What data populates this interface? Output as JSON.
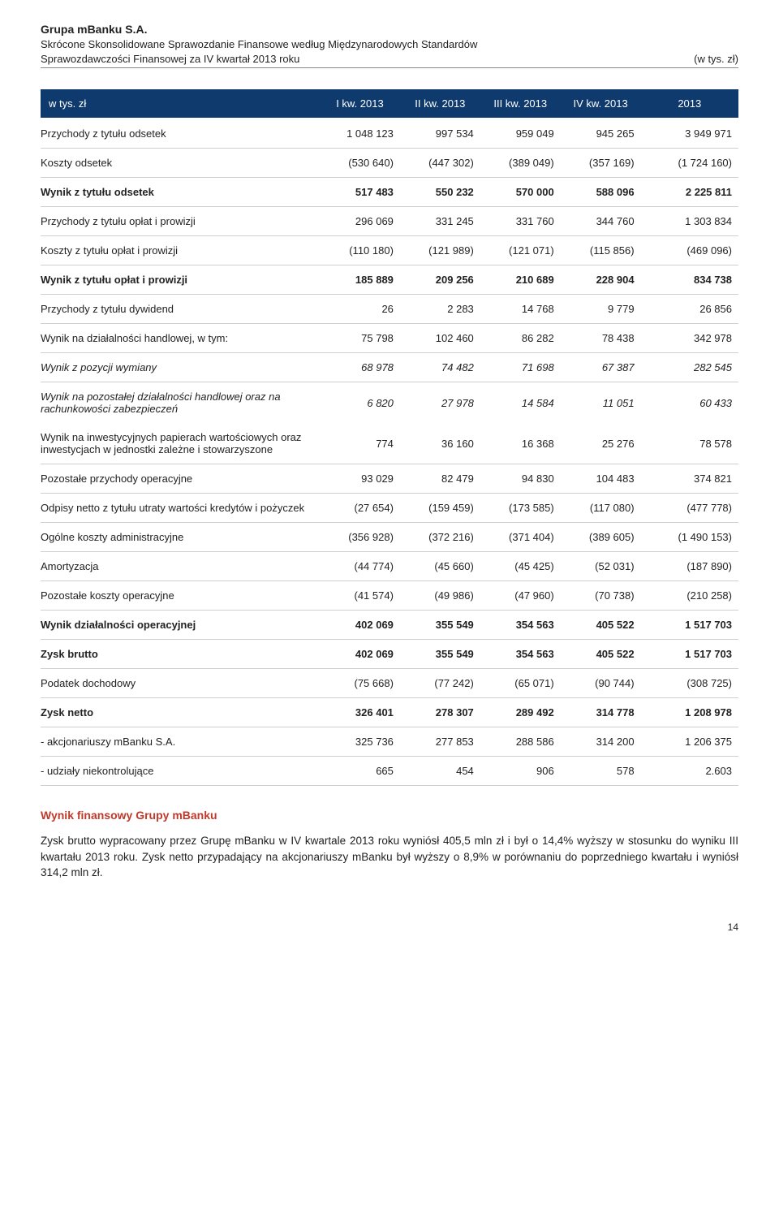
{
  "header": {
    "company": "Grupa mBanku S.A.",
    "subtitle_line1": "Skrócone Skonsolidowane Sprawozdanie Finansowe według Międzynarodowych Standardów",
    "subtitle_line2": "Sprawozdawczości Finansowej za IV kwartał 2013 roku",
    "unit": "(w tys. zł)"
  },
  "table": {
    "columns": [
      "w tys. zł",
      "I kw. 2013",
      "II kw. 2013",
      "III kw. 2013",
      "IV kw. 2013",
      "2013"
    ],
    "rows": [
      {
        "label": "Przychody z tytułu odsetek",
        "v": [
          "1 048 123",
          "997 534",
          "959 049",
          "945 265",
          "3 949 971"
        ]
      },
      {
        "label": "Koszty odsetek",
        "v": [
          "(530 640)",
          "(447 302)",
          "(389 049)",
          "(357 169)",
          "(1 724 160)"
        ]
      },
      {
        "label": "Wynik z tytułu odsetek",
        "v": [
          "517 483",
          "550 232",
          "570 000",
          "588 096",
          "2 225 811"
        ],
        "bold": true
      },
      {
        "label": "Przychody z tytułu opłat i prowizji",
        "v": [
          "296 069",
          "331 245",
          "331 760",
          "344 760",
          "1 303 834"
        ]
      },
      {
        "label": "Koszty z tytułu opłat i prowizji",
        "v": [
          "(110 180)",
          "(121 989)",
          "(121 071)",
          "(115 856)",
          "(469 096)"
        ]
      },
      {
        "label": "Wynik z tytułu opłat i prowizji",
        "v": [
          "185 889",
          "209 256",
          "210 689",
          "228 904",
          "834 738"
        ],
        "bold": true
      },
      {
        "label": "Przychody z tytułu dywidend",
        "v": [
          "26",
          "2 283",
          "14 768",
          "9 779",
          "26 856"
        ]
      },
      {
        "label": "Wynik na działalności handlowej, w tym:",
        "v": [
          "75 798",
          "102 460",
          "86 282",
          "78 438",
          "342 978"
        ]
      },
      {
        "label": "Wynik z pozycji wymiany",
        "v": [
          "68 978",
          "74 482",
          "71 698",
          "67 387",
          "282 545"
        ],
        "indent": 1,
        "italic": true
      },
      {
        "label": "Wynik na pozostałej działalności handlowej oraz na rachunkowości zabezpieczeń",
        "v": [
          "6 820",
          "27 978",
          "14 584",
          "11 051",
          "60 433"
        ],
        "indent": 1,
        "italic": true,
        "nobottom": true
      },
      {
        "label": "Wynik na inwestycyjnych papierach wartościowych oraz inwestycjach w jednostki zależne i stowarzyszone",
        "v": [
          "774",
          "36 160",
          "16 368",
          "25 276",
          "78 578"
        ]
      },
      {
        "label": "Pozostałe przychody operacyjne",
        "v": [
          "93 029",
          "82 479",
          "94 830",
          "104 483",
          "374 821"
        ]
      },
      {
        "label": "Odpisy netto z tytułu utraty wartości kredytów i pożyczek",
        "v": [
          "(27 654)",
          "(159 459)",
          "(173 585)",
          "(117 080)",
          "(477 778)"
        ]
      },
      {
        "label": "Ogólne koszty administracyjne",
        "v": [
          "(356 928)",
          "(372 216)",
          "(371 404)",
          "(389 605)",
          "(1 490 153)"
        ]
      },
      {
        "label": "Amortyzacja",
        "v": [
          "(44 774)",
          "(45 660)",
          "(45 425)",
          "(52 031)",
          "(187 890)"
        ]
      },
      {
        "label": "Pozostałe koszty operacyjne",
        "v": [
          "(41 574)",
          "(49 986)",
          "(47 960)",
          "(70 738)",
          "(210 258)"
        ]
      },
      {
        "label": "Wynik działalności operacyjnej",
        "v": [
          "402 069",
          "355 549",
          "354 563",
          "405 522",
          "1 517 703"
        ],
        "bold": true
      },
      {
        "label": "Zysk  brutto",
        "v": [
          "402 069",
          "355 549",
          "354 563",
          "405 522",
          "1 517 703"
        ],
        "bold": true
      },
      {
        "label": "Podatek dochodowy",
        "v": [
          "(75 668)",
          "(77 242)",
          "(65 071)",
          "(90 744)",
          "(308 725)"
        ]
      },
      {
        "label": "Zysk  netto",
        "v": [
          "326 401",
          "278 307",
          "289 492",
          "314 778",
          "1 208 978"
        ],
        "bold": true
      },
      {
        "label": " - akcjonariuszy mBanku S.A.",
        "v": [
          "325 736",
          "277 853",
          "288 586",
          "314 200",
          "1 206 375"
        ]
      },
      {
        "label": " - udziały niekontrolujące",
        "v": [
          "665",
          "454",
          "906",
          "578",
          "2.603"
        ]
      }
    ]
  },
  "section": {
    "title": "Wynik finansowy Grupy mBanku",
    "paragraph": "Zysk brutto wypracowany przez Grupę mBanku w IV kwartale 2013 roku wyniósł 405,5 mln zł i był o 14,4% wyższy w stosunku do wyniku III kwartału 2013 roku. Zysk netto przypadający na akcjonariuszy mBanku był wyższy o 8,9% w porównaniu do poprzedniego kwartału i wyniósł 314,2 mln zł."
  },
  "page_number": "14"
}
